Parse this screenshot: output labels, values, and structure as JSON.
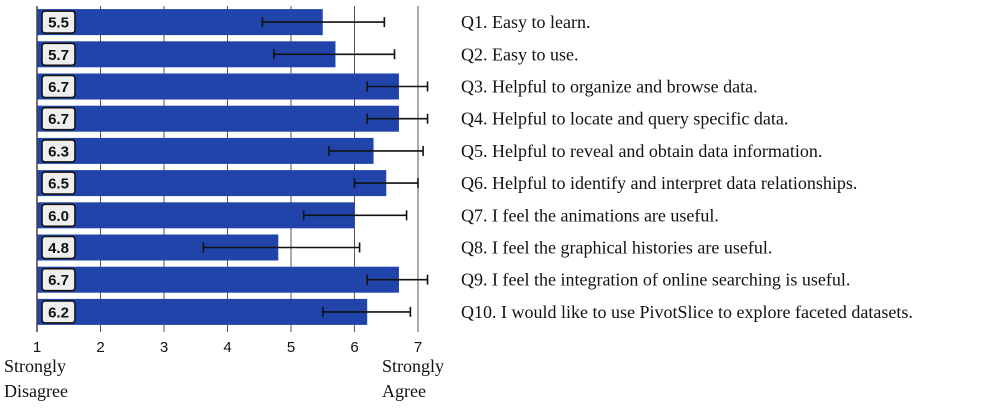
{
  "chart_data": {
    "type": "bar",
    "orientation": "horizontal",
    "categories": [
      "Q1. Easy to learn.",
      "Q2. Easy to use.",
      "Q3. Helpful to organize and browse data.",
      "Q4. Helpful to locate and query specific data.",
      "Q5. Helpful to reveal and obtain data information.",
      "Q6. Helpful to identify and interpret data relationships.",
      "Q7. I feel the animations are useful.",
      "Q8. I feel the graphical histories are useful.",
      "Q9. I feel the integration of online searching is useful.",
      "Q10. I would like to use PivotSlice to explore faceted datasets."
    ],
    "values": [
      5.5,
      5.7,
      6.7,
      6.7,
      6.3,
      6.5,
      6.0,
      4.8,
      6.7,
      6.2
    ],
    "value_labels": [
      "5.5",
      "5.7",
      "6.7",
      "6.7",
      "6.3",
      "6.5",
      "6.0",
      "4.8",
      "6.7",
      "6.2"
    ],
    "error_low": [
      4.55,
      4.73,
      6.2,
      6.2,
      5.6,
      6.0,
      5.2,
      3.62,
      6.2,
      5.5
    ],
    "error_high": [
      6.47,
      6.63,
      7.15,
      7.15,
      7.08,
      7.0,
      6.82,
      6.08,
      7.15,
      6.88
    ],
    "xlim": [
      1,
      7
    ],
    "x_ticks": [
      "1",
      "2",
      "3",
      "4",
      "5",
      "6",
      "7"
    ],
    "x_min_label": [
      "Strongly",
      "Disagree"
    ],
    "x_max_label": [
      "Strongly",
      "Agree"
    ],
    "gridlines": true,
    "bar_color": "#2144ab",
    "label_box_color": "#eeeeee"
  }
}
